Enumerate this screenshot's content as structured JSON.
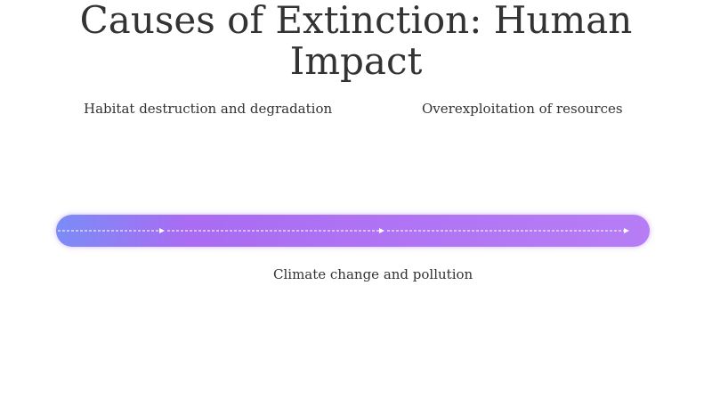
{
  "header": {
    "title": "Causes of Extinction: Human Impact"
  },
  "labels": [
    "Habitat destruction and degradation",
    "Overexploitation of resources",
    "Climate change and pollution"
  ]
}
